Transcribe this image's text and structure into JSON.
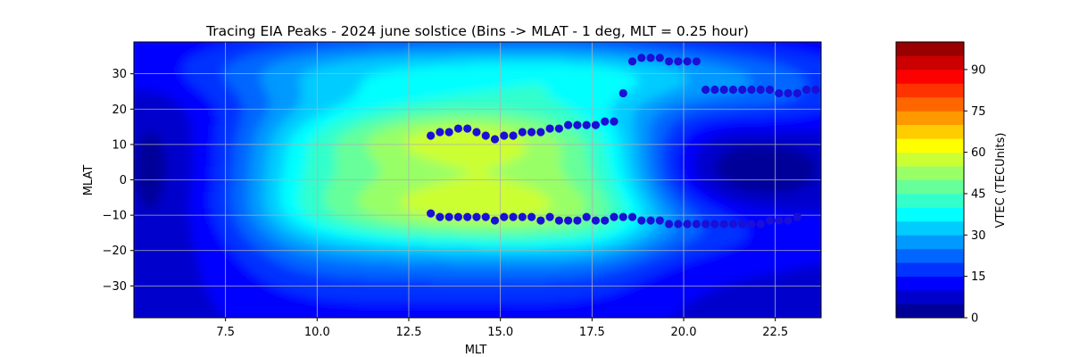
{
  "chart_data": {
    "type": "heatmap",
    "title": "Tracing EIA Peaks - 2024 june solstice (Bins -> MLAT - 1 deg, MLT = 0.25 hour)",
    "xlabel": "MLT",
    "ylabel": "MLAT",
    "xlim": [
      5.0,
      23.75
    ],
    "ylim": [
      -39,
      39
    ],
    "x_ticks": [
      7.5,
      10.0,
      12.5,
      15.0,
      17.5,
      20.0,
      22.5
    ],
    "x_tick_labels": [
      "7.5",
      "10.0",
      "12.5",
      "15.0",
      "17.5",
      "20.0",
      "22.5"
    ],
    "y_ticks": [
      30,
      20,
      10,
      0,
      -10,
      -20,
      -30
    ],
    "y_tick_labels": [
      "30",
      "20",
      "10",
      "0",
      "−10",
      "−20",
      "−30"
    ],
    "grid": true,
    "colorbar": {
      "label": "VTEC (TECUnits)",
      "min": 0,
      "max": 100,
      "step": 5,
      "ticks": [
        0,
        15,
        30,
        45,
        60,
        75,
        90
      ],
      "tick_labels": [
        "0",
        "15",
        "30",
        "45",
        "60",
        "75",
        "90"
      ],
      "colormap": "jet"
    },
    "marker_color": "#1a0fd6",
    "north_peaks": {
      "mlt": [
        13.1,
        13.35,
        13.6,
        13.85,
        14.1,
        14.35,
        14.6,
        14.85,
        15.1,
        15.35,
        15.6,
        15.85,
        16.1,
        16.35,
        16.6,
        16.85,
        17.1,
        17.35,
        17.6,
        17.85,
        18.1,
        18.35,
        18.6,
        18.85,
        19.1,
        19.35,
        19.6,
        19.85,
        20.1,
        20.35,
        20.6,
        20.85,
        21.1,
        21.35,
        21.6,
        21.85,
        22.1,
        22.35,
        22.6,
        22.85,
        23.1,
        23.35,
        23.6
      ],
      "mlat": [
        12.5,
        13.5,
        13.5,
        14.5,
        14.5,
        13.5,
        12.5,
        11.5,
        12.5,
        12.5,
        13.5,
        13.5,
        13.5,
        14.5,
        14.5,
        15.5,
        15.5,
        15.5,
        15.5,
        16.5,
        16.5,
        24.5,
        33.5,
        34.5,
        34.5,
        34.5,
        33.5,
        33.5,
        33.5,
        33.5,
        25.5,
        25.5,
        25.5,
        25.5,
        25.5,
        25.5,
        25.5,
        25.5,
        24.5,
        24.5,
        24.5,
        25.5,
        25.5
      ]
    },
    "south_peaks": {
      "mlt": [
        13.1,
        13.35,
        13.6,
        13.85,
        14.1,
        14.35,
        14.6,
        14.85,
        15.1,
        15.35,
        15.6,
        15.85,
        16.1,
        16.35,
        16.6,
        16.85,
        17.1,
        17.35,
        17.6,
        17.85,
        18.1,
        18.35,
        18.6,
        18.85,
        19.1,
        19.35,
        19.6,
        19.85,
        20.1,
        20.35,
        20.6,
        20.85,
        21.1,
        21.35,
        21.6,
        21.85,
        22.1,
        22.35,
        22.6,
        22.85,
        23.1
      ],
      "mlat": [
        -9.5,
        -10.5,
        -10.5,
        -10.5,
        -10.5,
        -10.5,
        -10.5,
        -11.5,
        -10.5,
        -10.5,
        -10.5,
        -10.5,
        -11.5,
        -10.5,
        -11.5,
        -11.5,
        -11.5,
        -10.5,
        -11.5,
        -11.5,
        -10.5,
        -10.5,
        -10.5,
        -11.5,
        -11.5,
        -11.5,
        -12.5,
        -12.5,
        -12.5,
        -12.5,
        -12.5,
        -12.5,
        -12.5,
        -12.5,
        -12.5,
        -12.5,
        -12.5,
        -11.5,
        -11.5,
        -11.5,
        -10.5
      ]
    }
  }
}
